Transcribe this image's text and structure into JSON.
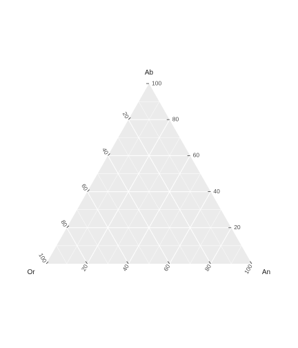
{
  "chart_data": {
    "type": "ternary",
    "title": "",
    "axes": {
      "top": {
        "name": "Ab",
        "ticks": [
          20,
          40,
          60,
          80,
          100
        ]
      },
      "left": {
        "name": "Or",
        "ticks": [
          20,
          40,
          60,
          80,
          100
        ]
      },
      "right": {
        "name": "An",
        "ticks": [
          20,
          40,
          60,
          80,
          100
        ]
      }
    },
    "range": [
      0,
      100
    ],
    "grid": {
      "major_step": 20,
      "minor_step": 10,
      "visible": true
    },
    "points": [],
    "colors": {
      "panel": "#ebebeb",
      "grid": "#ffffff",
      "tick": "#333333",
      "label": "#4d4d4d",
      "title": "#1a1a1a"
    }
  }
}
